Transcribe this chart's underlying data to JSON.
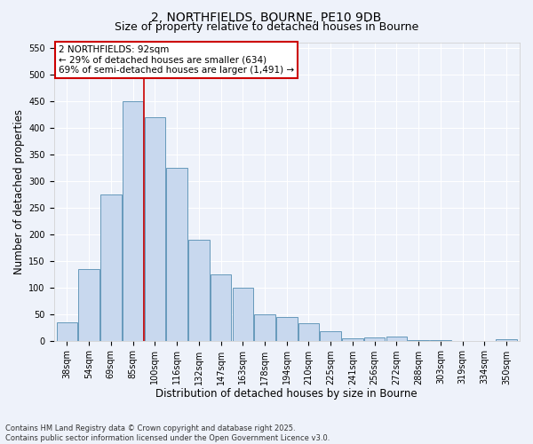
{
  "title_line1": "2, NORTHFIELDS, BOURNE, PE10 9DB",
  "title_line2": "Size of property relative to detached houses in Bourne",
  "xlabel": "Distribution of detached houses by size in Bourne",
  "ylabel": "Number of detached properties",
  "categories": [
    "38sqm",
    "54sqm",
    "69sqm",
    "85sqm",
    "100sqm",
    "116sqm",
    "132sqm",
    "147sqm",
    "163sqm",
    "178sqm",
    "194sqm",
    "210sqm",
    "225sqm",
    "241sqm",
    "256sqm",
    "272sqm",
    "288sqm",
    "303sqm",
    "319sqm",
    "334sqm",
    "350sqm"
  ],
  "values": [
    35,
    135,
    275,
    450,
    420,
    325,
    190,
    125,
    100,
    50,
    45,
    32,
    17,
    4,
    6,
    7,
    1,
    1,
    0,
    0,
    3
  ],
  "bar_color": "#c8d8ee",
  "bar_edge_color": "#6699bb",
  "vline_x_idx": 3.5,
  "vline_color": "#cc0000",
  "annotation_text": "2 NORTHFIELDS: 92sqm\n← 29% of detached houses are smaller (634)\n69% of semi-detached houses are larger (1,491) →",
  "annotation_box_color": "#ffffff",
  "annotation_box_edge_color": "#cc0000",
  "ylim": [
    0,
    560
  ],
  "yticks": [
    0,
    50,
    100,
    150,
    200,
    250,
    300,
    350,
    400,
    450,
    500,
    550
  ],
  "background_color": "#eef2fa",
  "grid_color": "#ffffff",
  "footer_text": "Contains HM Land Registry data © Crown copyright and database right 2025.\nContains public sector information licensed under the Open Government Licence v3.0.",
  "title_fontsize": 10,
  "subtitle_fontsize": 9,
  "axis_label_fontsize": 8.5,
  "tick_fontsize": 7,
  "annotation_fontsize": 7.5,
  "footer_fontsize": 6
}
